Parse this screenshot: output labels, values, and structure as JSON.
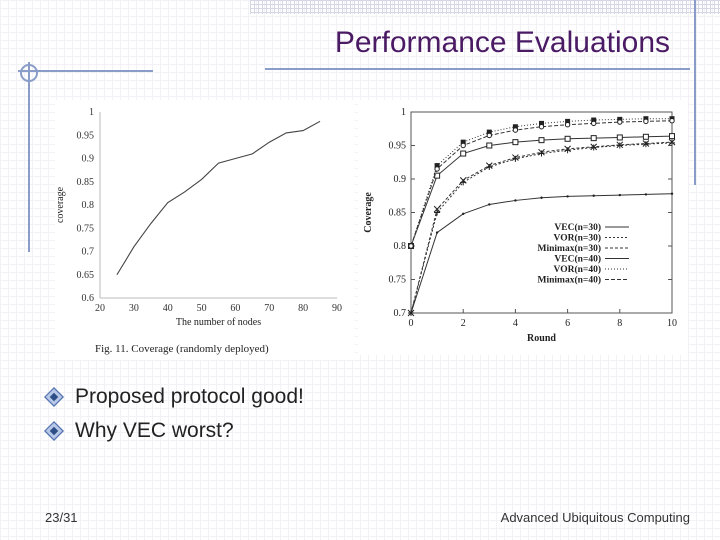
{
  "slide": {
    "title": "Performance Evaluations",
    "bullets": [
      "Proposed protocol good!",
      "Why VEC worst?"
    ],
    "page_number": "23/31",
    "footer": "Advanced Ubiquitous Computing"
  },
  "chart_data": [
    {
      "type": "line",
      "title": "Fig. 11.   Coverage (randomly deployed)",
      "xlabel": "The number of nodes",
      "ylabel": "coverage",
      "xlim": [
        20,
        90
      ],
      "ylim": [
        0.6,
        1.0
      ],
      "xticks": [
        "20",
        "30",
        "40",
        "50",
        "60",
        "70",
        "80",
        "90"
      ],
      "yticks": [
        "0.6",
        "0.65",
        "0.7",
        "0.75",
        "0.8",
        "0.85",
        "0.9",
        "0.95",
        "1"
      ],
      "series": [
        {
          "name": "coverage",
          "x": [
            25,
            30,
            35,
            40,
            45,
            50,
            55,
            60,
            65,
            70,
            75,
            80,
            85
          ],
          "values": [
            0.65,
            0.71,
            0.76,
            0.805,
            0.828,
            0.855,
            0.89,
            0.9,
            0.91,
            0.935,
            0.955,
            0.96,
            0.98
          ]
        }
      ]
    },
    {
      "type": "line",
      "title": "",
      "xlabel": "Round",
      "ylabel": "Coverage",
      "xlim": [
        0,
        10
      ],
      "ylim": [
        0.7,
        1.0
      ],
      "xticks": [
        "0",
        "2",
        "4",
        "6",
        "8",
        "10"
      ],
      "yticks": [
        "0.7",
        "0.75",
        "0.8",
        "0.85",
        "0.9",
        "0.95",
        "1"
      ],
      "legend": "bottom-right",
      "x": [
        0,
        1,
        2,
        3,
        4,
        5,
        6,
        7,
        8,
        9,
        10
      ],
      "series": [
        {
          "name": "VEC(n=30)",
          "values": [
            0.7,
            0.82,
            0.848,
            0.862,
            0.868,
            0.872,
            0.874,
            0.875,
            0.876,
            0.877,
            0.878
          ]
        },
        {
          "name": "VOR(n=30)",
          "values": [
            0.7,
            0.85,
            0.895,
            0.918,
            0.93,
            0.938,
            0.943,
            0.947,
            0.95,
            0.952,
            0.954
          ]
        },
        {
          "name": "Minimax(n=30)",
          "values": [
            0.7,
            0.855,
            0.898,
            0.92,
            0.932,
            0.94,
            0.945,
            0.948,
            0.951,
            0.953,
            0.955
          ]
        },
        {
          "name": "VEC(n=40)",
          "values": [
            0.8,
            0.905,
            0.938,
            0.95,
            0.955,
            0.958,
            0.96,
            0.961,
            0.962,
            0.963,
            0.964
          ]
        },
        {
          "name": "VOR(n=40)",
          "values": [
            0.8,
            0.92,
            0.955,
            0.97,
            0.978,
            0.983,
            0.986,
            0.988,
            0.989,
            0.99,
            0.99
          ]
        },
        {
          "name": "Minimax(n=40)",
          "values": [
            0.8,
            0.915,
            0.95,
            0.965,
            0.973,
            0.978,
            0.981,
            0.983,
            0.985,
            0.986,
            0.987
          ]
        }
      ]
    }
  ]
}
